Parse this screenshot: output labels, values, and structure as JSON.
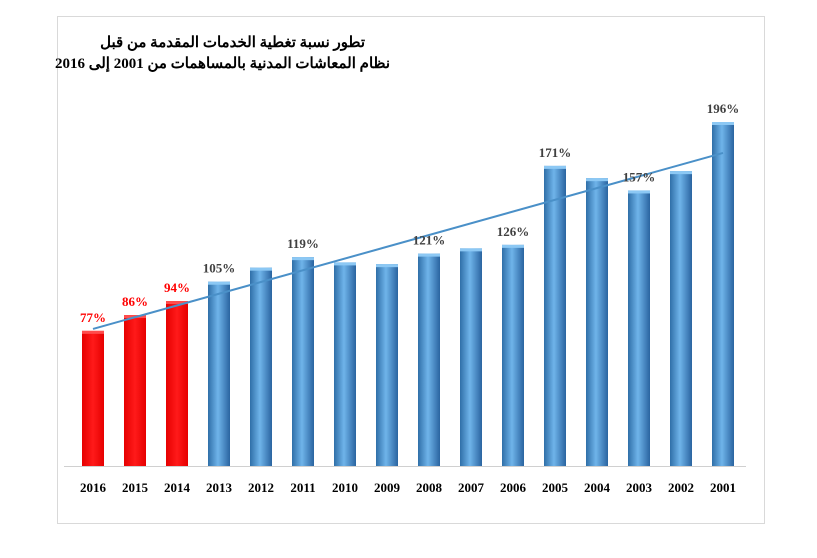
{
  "chart_data": {
    "type": "bar",
    "title_lines": [
      "تطور نسبة تغطية الخدمات المقدمة من قبل",
      "نظام المعاشات المدنية بالمساهمات من 2001 إلى 2016"
    ],
    "categories": [
      "2016",
      "2015",
      "2014",
      "2013",
      "2012",
      "2011",
      "2010",
      "2009",
      "2008",
      "2007",
      "2006",
      "2005",
      "2004",
      "2003",
      "2002",
      "2001"
    ],
    "values": [
      77,
      86,
      94,
      105,
      113,
      119,
      116,
      115,
      121,
      124,
      126,
      171,
      164,
      157,
      168,
      196
    ],
    "data_labels": [
      "77%",
      "86%",
      "94%",
      "105%",
      "",
      "119%",
      "",
      "",
      "121%",
      "",
      "126%",
      "171%",
      "",
      "157%",
      "",
      "196%"
    ],
    "bar_colors": [
      "#ff0000",
      "#ff0000",
      "#ff0000",
      "#4e9ad6",
      "#4e9ad6",
      "#4e9ad6",
      "#4e9ad6",
      "#4e9ad6",
      "#4e9ad6",
      "#4e9ad6",
      "#4e9ad6",
      "#4e9ad6",
      "#4e9ad6",
      "#4e9ad6",
      "#4e9ad6",
      "#4e9ad6"
    ],
    "label_colors": [
      "#ff0000",
      "#ff0000",
      "#ff0000",
      "#404040",
      "#404040",
      "#404040",
      "#404040",
      "#404040",
      "#404040",
      "#404040",
      "#404040",
      "#404040",
      "#404040",
      "#404040",
      "#404040",
      "#404040"
    ],
    "ylim": [
      0,
      196
    ],
    "trendline": true,
    "trendline_color": "#4a90c8",
    "grid": false,
    "legend": "none"
  }
}
